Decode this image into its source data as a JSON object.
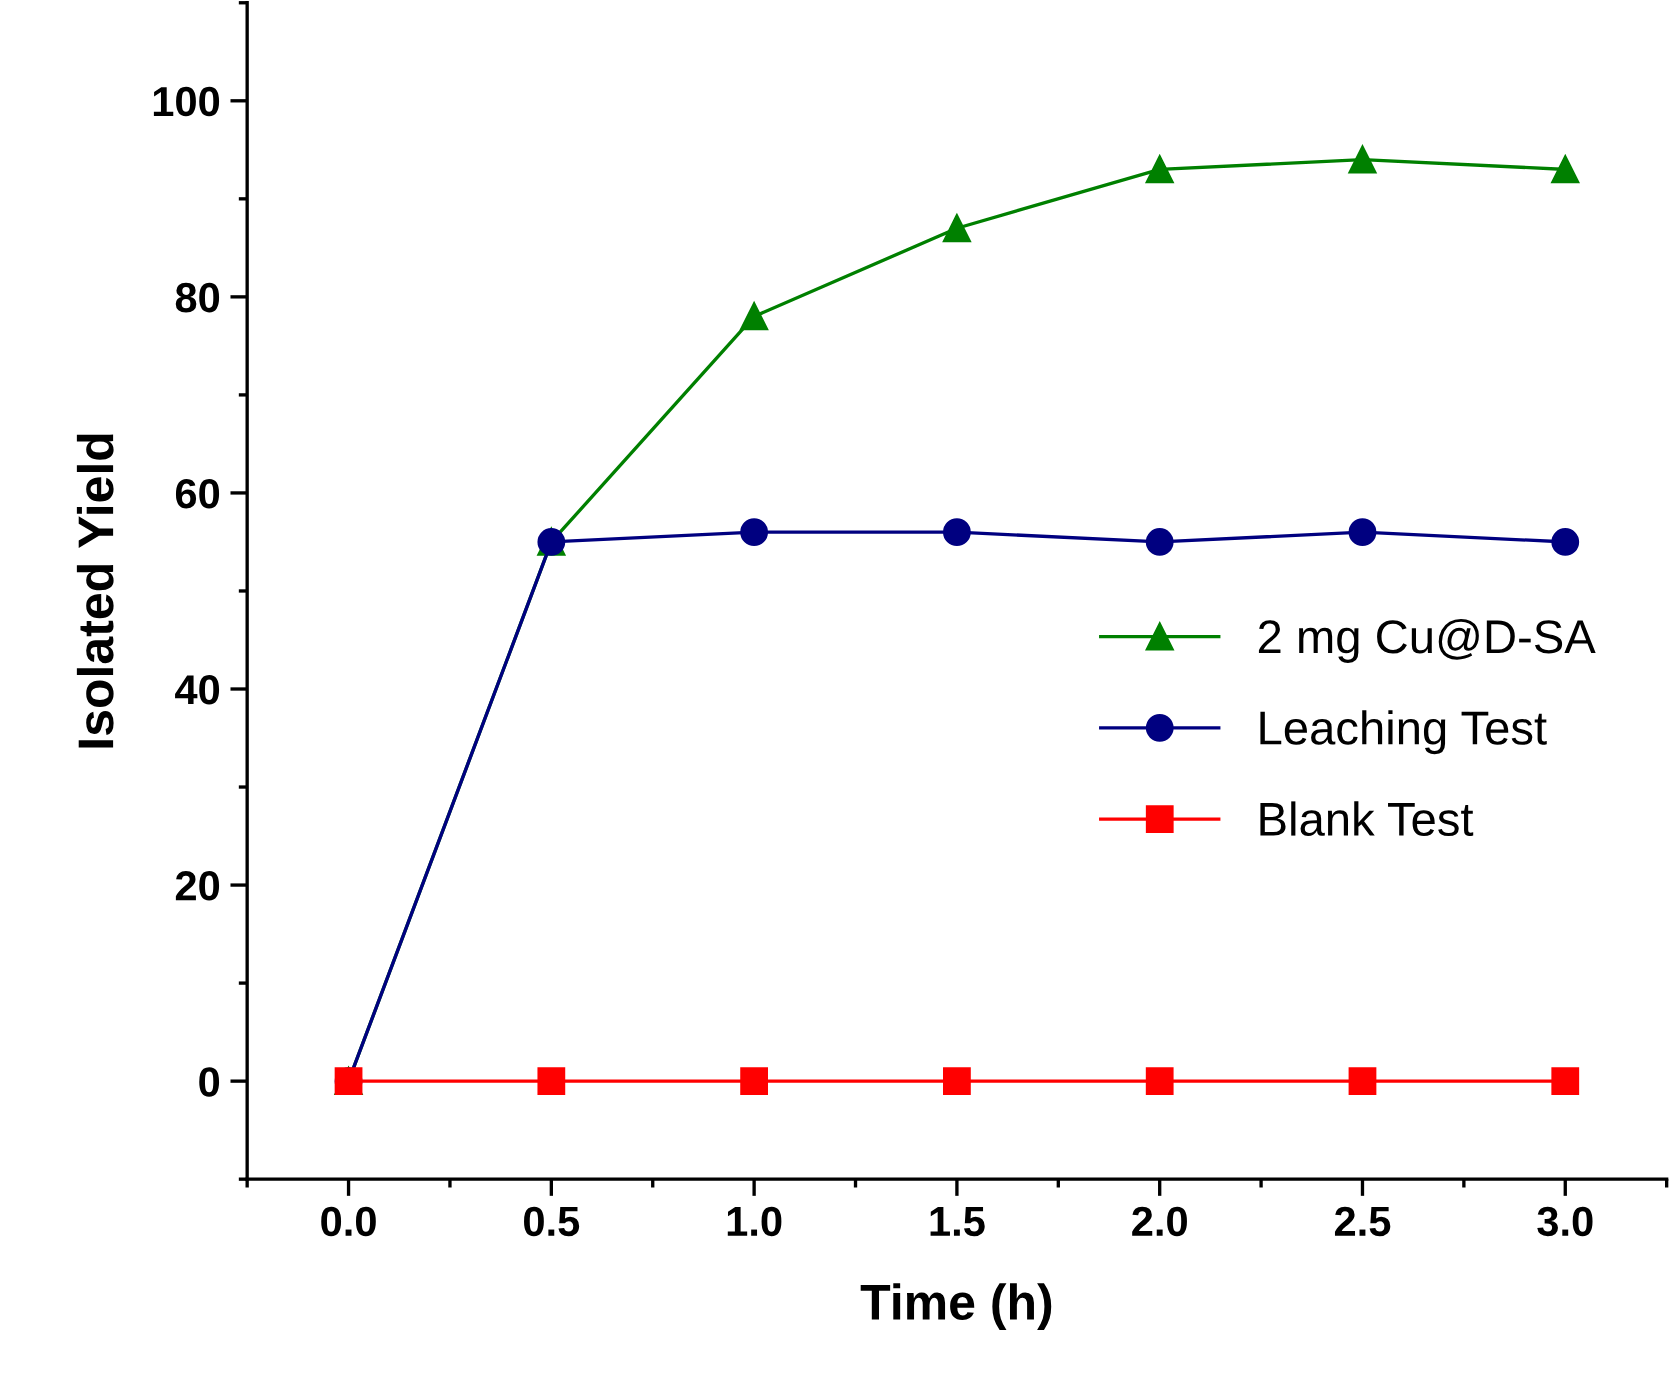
{
  "chart_data": {
    "type": "line",
    "xlabel": "Time (h)",
    "ylabel": "Isolated Yield",
    "x": [
      0,
      0.5,
      1.0,
      1.5,
      2.0,
      2.5,
      3.0
    ],
    "series": [
      {
        "name": "2 mg Cu@D-SA",
        "color": "#008000",
        "marker": "triangle",
        "values": [
          0,
          55,
          78,
          87,
          93,
          94,
          93
        ]
      },
      {
        "name": "Leaching Test",
        "color": "#000080",
        "marker": "circle",
        "values": [
          0,
          55,
          56,
          56,
          55,
          56,
          55
        ]
      },
      {
        "name": "Blank Test",
        "color": "#ff0000",
        "marker": "square",
        "values": [
          0,
          0,
          0,
          0,
          0,
          0,
          0
        ]
      }
    ],
    "xlim": [
      -0.25,
      3.25
    ],
    "ylim": [
      -10,
      110
    ],
    "xticks": [
      {
        "value": 0,
        "label": "0.0"
      },
      {
        "value": 0.5,
        "label": "0.5"
      },
      {
        "value": 1.0,
        "label": "1.0"
      },
      {
        "value": 1.5,
        "label": "1.5"
      },
      {
        "value": 2.0,
        "label": "2.0"
      },
      {
        "value": 2.5,
        "label": "2.5"
      },
      {
        "value": 3.0,
        "label": "3.0"
      }
    ],
    "yticks": [
      0,
      20,
      40,
      60,
      80,
      100
    ],
    "grid": false,
    "legend": "right",
    "line_style": "solid"
  }
}
